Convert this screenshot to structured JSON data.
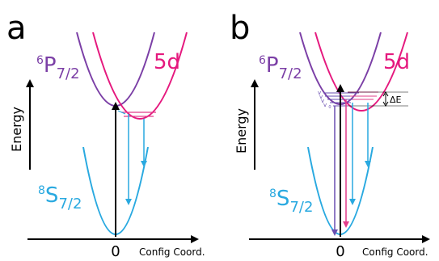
{
  "colors": {
    "ground": "#29a9e0",
    "p_state": "#7b3fa6",
    "d_state": "#e5197e",
    "axis": "#000000",
    "level_purple": "#6a4fb0",
    "level_pink": "#e23c8a"
  },
  "panels": [
    {
      "letter": "a",
      "ylabel": "Energy",
      "x_tick": "0",
      "x_axis_label": "Config Coord.",
      "states": {
        "excited_p": {
          "base": "6",
          "main": "P",
          "sub": "7/2"
        },
        "excited_d": "5d",
        "ground": {
          "base": "8",
          "main": "S",
          "sub": "7/2"
        }
      }
    },
    {
      "letter": "b",
      "ylabel": "Energy",
      "x_tick": "0",
      "x_axis_label": "Config Coord.",
      "states": {
        "excited_p": {
          "base": "6",
          "main": "P",
          "sub": "7/2"
        },
        "excited_d": "5d",
        "ground": {
          "base": "8",
          "main": "S",
          "sub": "7/2"
        }
      },
      "vib_labels": [
        "v",
        "v",
        "v",
        "v",
        "0"
      ],
      "delta_label": "ΔE"
    }
  ]
}
